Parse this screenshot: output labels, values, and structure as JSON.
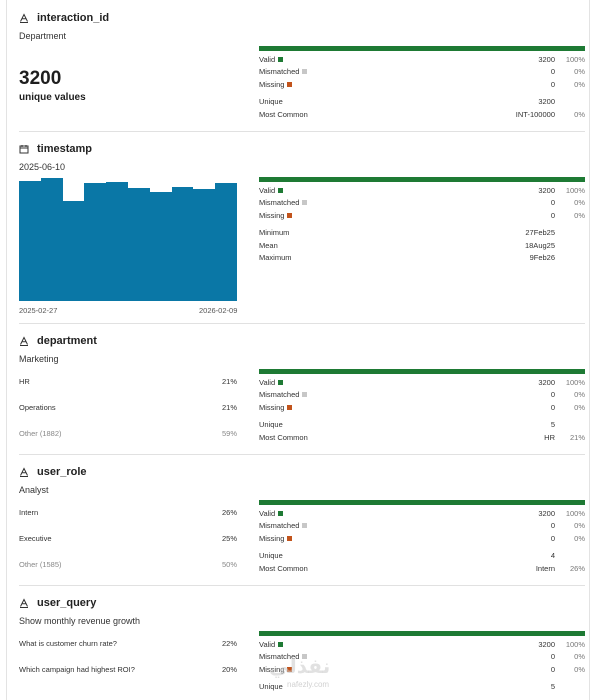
{
  "columns": [
    {
      "type_icon": "text-type-icon",
      "name": "interaction_id",
      "subtitle": "Department",
      "big_value": "3200",
      "big_label": "unique values",
      "stats": {
        "valid": {
          "label": "Valid",
          "value": "3200",
          "pct": "100%"
        },
        "mismatched": {
          "label": "Mismatched",
          "value": "0",
          "pct": "0%"
        },
        "missing": {
          "label": "Missing",
          "value": "0",
          "pct": "0%"
        },
        "extra": [
          {
            "label": "Unique",
            "value": "3200",
            "pct": ""
          },
          {
            "label": "Most Common",
            "value": "INT-100000",
            "pct": "0%"
          }
        ]
      }
    },
    {
      "type_icon": "calendar-icon",
      "name": "timestamp",
      "subtitle": "2025-06-10",
      "histogram": {
        "start_label": "2025-02-27",
        "end_label": "2026-02-09",
        "values": [
          0.97,
          0.99,
          0.81,
          0.95,
          0.96,
          0.91,
          0.88,
          0.92,
          0.9,
          0.95
        ]
      },
      "stats": {
        "valid": {
          "label": "Valid",
          "value": "3200",
          "pct": "100%"
        },
        "mismatched": {
          "label": "Mismatched",
          "value": "0",
          "pct": "0%"
        },
        "missing": {
          "label": "Missing",
          "value": "0",
          "pct": "0%"
        },
        "extra": [
          {
            "label": "Minimum",
            "value": "27Feb25",
            "pct": ""
          },
          {
            "label": "Mean",
            "value": "18Aug25",
            "pct": ""
          },
          {
            "label": "Maximum",
            "value": "9Feb26",
            "pct": ""
          }
        ]
      }
    },
    {
      "type_icon": "text-type-icon",
      "name": "department",
      "subtitle": "Marketing",
      "categories": [
        {
          "label": "HR",
          "pct": "21%"
        },
        {
          "label": "Operations",
          "pct": "21%"
        },
        {
          "label": "Other (1882)",
          "pct": "59%"
        }
      ],
      "stats": {
        "valid": {
          "label": "Valid",
          "value": "3200",
          "pct": "100%"
        },
        "mismatched": {
          "label": "Mismatched",
          "value": "0",
          "pct": "0%"
        },
        "missing": {
          "label": "Missing",
          "value": "0",
          "pct": "0%"
        },
        "extra": [
          {
            "label": "Unique",
            "value": "5",
            "pct": ""
          },
          {
            "label": "Most Common",
            "value": "HR",
            "pct": "21%"
          }
        ]
      }
    },
    {
      "type_icon": "text-type-icon",
      "name": "user_role",
      "subtitle": "Analyst",
      "categories": [
        {
          "label": "Intern",
          "pct": "26%"
        },
        {
          "label": "Executive",
          "pct": "25%"
        },
        {
          "label": "Other (1585)",
          "pct": "50%"
        }
      ],
      "stats": {
        "valid": {
          "label": "Valid",
          "value": "3200",
          "pct": "100%"
        },
        "mismatched": {
          "label": "Mismatched",
          "value": "0",
          "pct": "0%"
        },
        "missing": {
          "label": "Missing",
          "value": "0",
          "pct": "0%"
        },
        "extra": [
          {
            "label": "Unique",
            "value": "4",
            "pct": ""
          },
          {
            "label": "Most Common",
            "value": "Intern",
            "pct": "26%"
          }
        ]
      }
    },
    {
      "type_icon": "text-type-icon",
      "name": "user_query",
      "subtitle": "Show monthly revenue growth",
      "categories": [
        {
          "label": "What is customer churn rate?",
          "pct": "22%"
        },
        {
          "label": "Which campaign had highest ROI?",
          "pct": "20%"
        }
      ],
      "stats": {
        "valid": {
          "label": "Valid",
          "value": "3200",
          "pct": "100%"
        },
        "mismatched": {
          "label": "Mismatched",
          "value": "0",
          "pct": "0%"
        },
        "missing": {
          "label": "Missing",
          "value": "0",
          "pct": "0%"
        },
        "extra": [
          {
            "label": "Unique",
            "value": "5",
            "pct": ""
          }
        ]
      }
    }
  ],
  "colors": {
    "valid": "#1e7a34",
    "mismatched": "#c7c7c7",
    "missing": "#c2541c",
    "histogram": "#0a77a6"
  },
  "watermark": {
    "text": "نفذلي",
    "sub": "nafezly.com"
  }
}
